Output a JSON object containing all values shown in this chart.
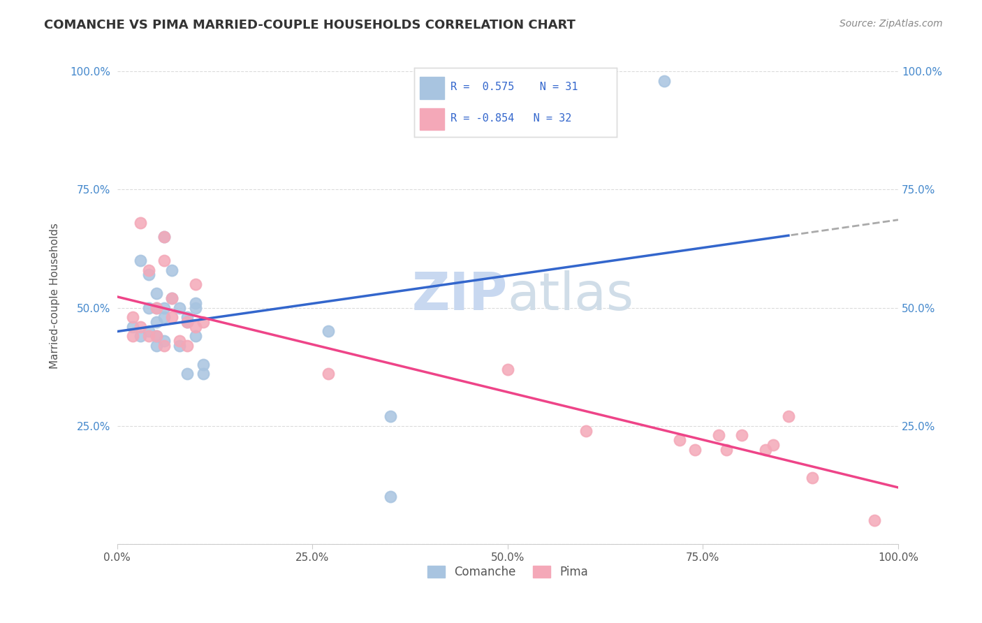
{
  "title": "COMANCHE VS PIMA MARRIED-COUPLE HOUSEHOLDS CORRELATION CHART",
  "source": "Source: ZipAtlas.com",
  "ylabel": "Married-couple Households",
  "comanche_R": 0.575,
  "comanche_N": 31,
  "pima_R": -0.854,
  "pima_N": 32,
  "comanche_color": "#a8c4e0",
  "pima_color": "#f4a8b8",
  "blue_line_color": "#3366cc",
  "pink_line_color": "#ee4488",
  "dashed_line_color": "#aaaaaa",
  "watermark_zip_color": "#c8d8f0",
  "watermark_atlas_color": "#d0dde8",
  "comanche_x": [
    0.02,
    0.03,
    0.03,
    0.04,
    0.04,
    0.04,
    0.05,
    0.05,
    0.05,
    0.05,
    0.05,
    0.06,
    0.06,
    0.06,
    0.06,
    0.07,
    0.07,
    0.08,
    0.08,
    0.09,
    0.09,
    0.09,
    0.1,
    0.1,
    0.1,
    0.11,
    0.11,
    0.27,
    0.35,
    0.7,
    0.35
  ],
  "comanche_y": [
    0.46,
    0.6,
    0.44,
    0.57,
    0.5,
    0.45,
    0.47,
    0.53,
    0.5,
    0.44,
    0.42,
    0.65,
    0.5,
    0.48,
    0.43,
    0.58,
    0.52,
    0.5,
    0.42,
    0.48,
    0.47,
    0.36,
    0.51,
    0.5,
    0.44,
    0.38,
    0.36,
    0.45,
    0.27,
    0.98,
    0.1
  ],
  "pima_x": [
    0.02,
    0.02,
    0.03,
    0.03,
    0.04,
    0.04,
    0.05,
    0.05,
    0.06,
    0.06,
    0.06,
    0.07,
    0.07,
    0.08,
    0.09,
    0.09,
    0.1,
    0.1,
    0.11,
    0.27,
    0.5,
    0.6,
    0.72,
    0.74,
    0.77,
    0.78,
    0.8,
    0.83,
    0.84,
    0.86,
    0.89,
    0.97
  ],
  "pima_y": [
    0.48,
    0.44,
    0.68,
    0.46,
    0.58,
    0.44,
    0.5,
    0.44,
    0.42,
    0.65,
    0.6,
    0.52,
    0.48,
    0.43,
    0.47,
    0.42,
    0.55,
    0.46,
    0.47,
    0.36,
    0.37,
    0.24,
    0.22,
    0.2,
    0.23,
    0.2,
    0.23,
    0.2,
    0.21,
    0.27,
    0.14,
    0.05
  ],
  "xlim": [
    0.0,
    1.0
  ],
  "ylim": [
    0.0,
    1.05
  ],
  "xticks": [
    0.0,
    0.25,
    0.5,
    0.75,
    1.0
  ],
  "yticks": [
    0.0,
    0.25,
    0.5,
    0.75,
    1.0
  ],
  "xtick_labels": [
    "0.0%",
    "25.0%",
    "50.0%",
    "75.0%",
    "100.0%"
  ],
  "ytick_labels": [
    "",
    "25.0%",
    "50.0%",
    "75.0%",
    "100.0%"
  ],
  "right_ytick_labels": [
    "",
    "25.0%",
    "50.0%",
    "75.0%",
    "100.0%"
  ],
  "dashed_threshold": 0.86
}
